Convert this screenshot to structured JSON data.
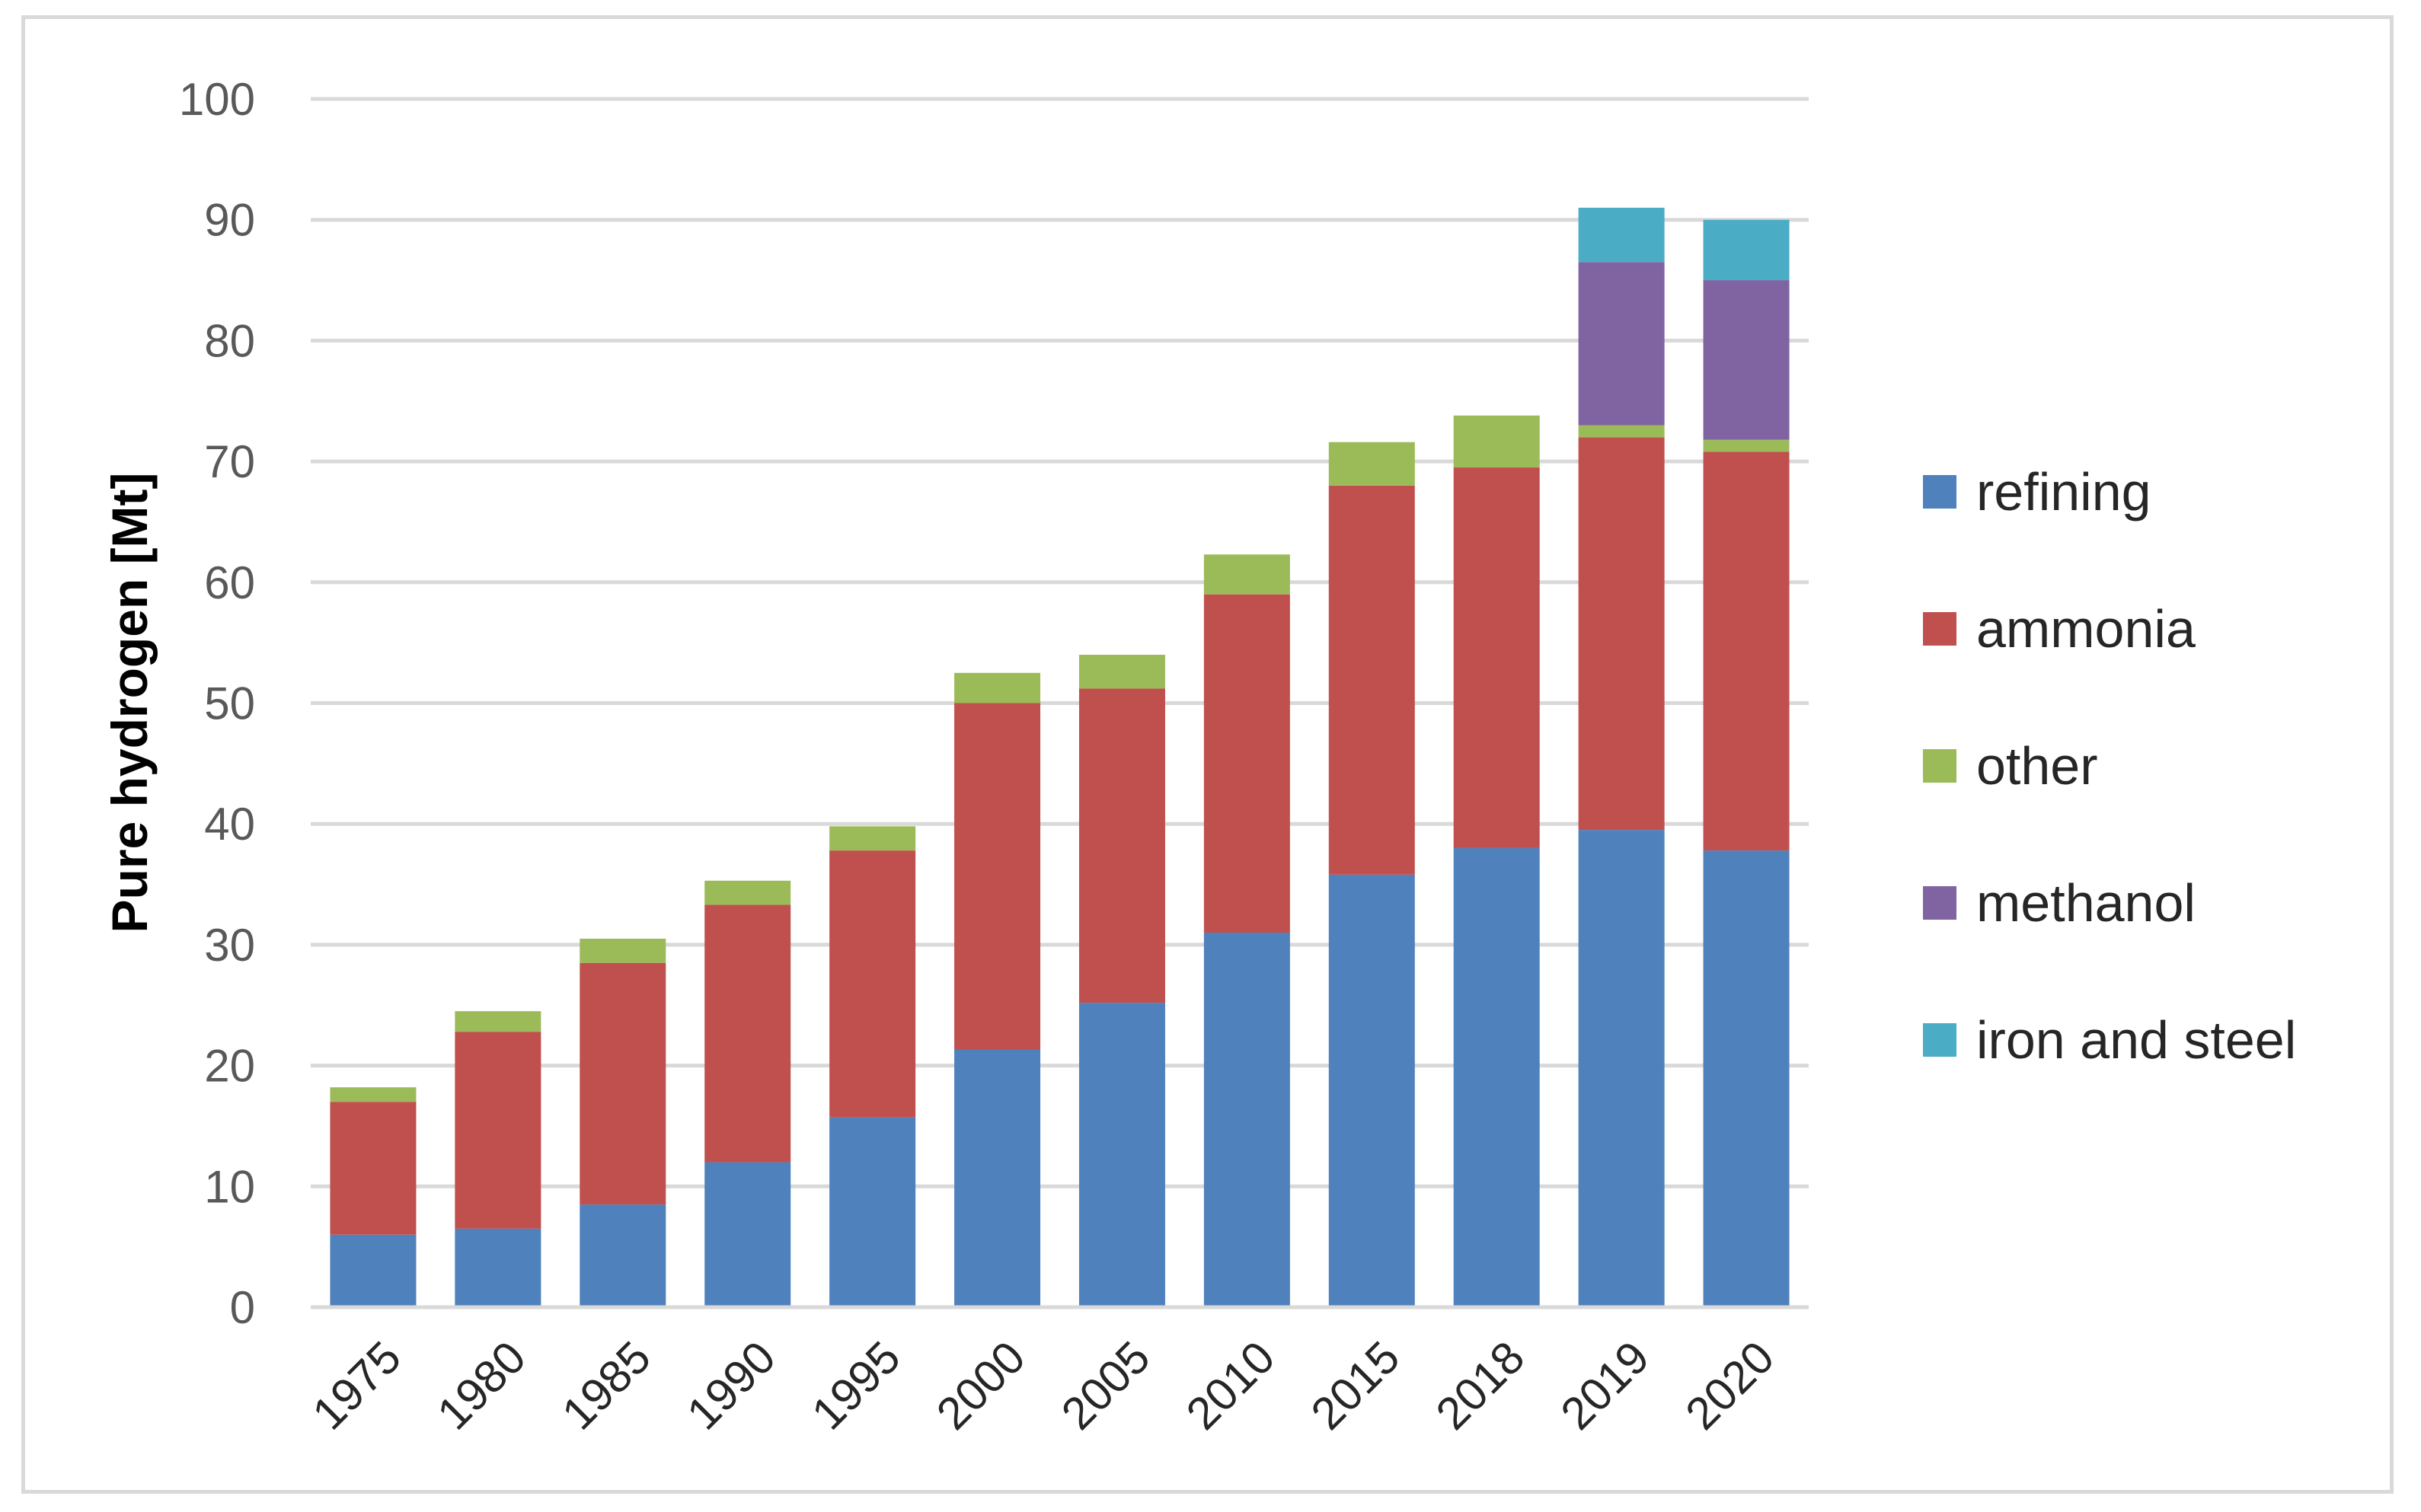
{
  "chart_data": {
    "type": "bar",
    "stacked": true,
    "title": "",
    "xlabel": "",
    "ylabel": "Pure hydrogen [Mt]",
    "ylim": [
      0,
      100
    ],
    "yticks": [
      "0",
      "10",
      "20",
      "30",
      "40",
      "50",
      "60",
      "70",
      "80",
      "90",
      "100"
    ],
    "grid": true,
    "legend_position": "right",
    "categories": [
      "1975",
      "1980",
      "1985",
      "1990",
      "1995",
      "2000",
      "2005",
      "2010",
      "2015",
      "2018",
      "2019",
      "2020"
    ],
    "series": [
      {
        "name": "refining",
        "color": "#4f81bd",
        "values": [
          6,
          6.5,
          8.5,
          12,
          15.7,
          21.3,
          25.2,
          31,
          35.8,
          38,
          39.5,
          37.8
        ]
      },
      {
        "name": "ammonia",
        "color": "#c0504d",
        "values": [
          11,
          16.3,
          20,
          21.3,
          22.1,
          28.7,
          26,
          28,
          32.2,
          31.5,
          32.5,
          33
        ]
      },
      {
        "name": "other",
        "color": "#9bbb59",
        "values": [
          1.2,
          1.7,
          2,
          2,
          2,
          2.5,
          2.8,
          3.3,
          3.6,
          4.3,
          1,
          1
        ]
      },
      {
        "name": "methanol",
        "color": "#8064a2",
        "values": [
          0,
          0,
          0,
          0,
          0,
          0,
          0,
          0,
          0,
          0,
          13.5,
          13.2
        ]
      },
      {
        "name": "iron and steel",
        "color": "#4bacc6",
        "values": [
          0,
          0,
          0,
          0,
          0,
          0,
          0,
          0,
          0,
          0,
          4.5,
          5
        ]
      }
    ]
  }
}
